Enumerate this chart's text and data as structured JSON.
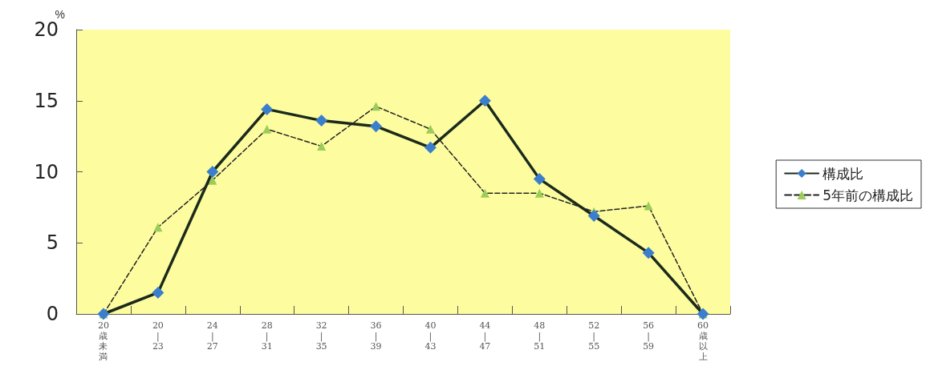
{
  "chart_data": {
    "type": "line",
    "ylabel": "%",
    "categories": [
      "20歳未満",
      "20|23",
      "24|27",
      "28|31",
      "32|35",
      "36|39",
      "40|43",
      "44|47",
      "48|51",
      "52|55",
      "56|59",
      "60歳以上"
    ],
    "series": [
      {
        "name": "構成比",
        "color": "#3b7fcc",
        "marker": "diamond",
        "line_style": "solid",
        "values": [
          0,
          1.5,
          10.0,
          14.4,
          13.6,
          13.2,
          11.7,
          15.0,
          9.5,
          6.9,
          4.3,
          0
        ]
      },
      {
        "name": "5年前の構成比",
        "color": "#9ccc5a",
        "marker": "triangle",
        "line_style": "dashed",
        "values": [
          0,
          6.1,
          9.4,
          13.0,
          11.8,
          14.6,
          13.0,
          8.5,
          8.5,
          7.2,
          7.6,
          0
        ]
      }
    ],
    "ylim": [
      0,
      20
    ],
    "yticks": [
      0,
      5,
      10,
      15,
      20
    ],
    "grid": false,
    "legend": "right"
  }
}
